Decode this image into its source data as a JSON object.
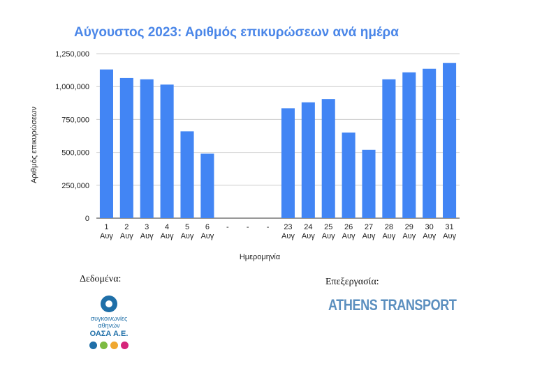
{
  "chart_data": {
    "type": "bar",
    "title": "Αύγουστος 2023: Αριθμός επικυρώσεων ανά ημέρα",
    "xlabel": "Ημερομηνία",
    "ylabel": "Αριθμός επικυρώσεων",
    "ylim": [
      0,
      1250000
    ],
    "yticks": [
      "0",
      "250,000",
      "500,000",
      "750,000",
      "1,000,000",
      "1,250,000"
    ],
    "grid": true,
    "bar_color": "#4285f4",
    "categories": [
      {
        "day": "1",
        "month": "Αυγ"
      },
      {
        "day": "2",
        "month": "Αυγ"
      },
      {
        "day": "3",
        "month": "Αυγ"
      },
      {
        "day": "4",
        "month": "Αυγ"
      },
      {
        "day": "5",
        "month": "Αυγ"
      },
      {
        "day": "6",
        "month": "Αυγ"
      },
      {
        "day": "-",
        "month": ""
      },
      {
        "day": "-",
        "month": ""
      },
      {
        "day": "-",
        "month": ""
      },
      {
        "day": "23",
        "month": "Αυγ"
      },
      {
        "day": "24",
        "month": "Αυγ"
      },
      {
        "day": "25",
        "month": "Αυγ"
      },
      {
        "day": "26",
        "month": "Αυγ"
      },
      {
        "day": "27",
        "month": "Αυγ"
      },
      {
        "day": "28",
        "month": "Αυγ"
      },
      {
        "day": "29",
        "month": "Αυγ"
      },
      {
        "day": "30",
        "month": "Αυγ"
      },
      {
        "day": "31",
        "month": "Αυγ"
      }
    ],
    "values": [
      1130000,
      1065000,
      1055000,
      1015000,
      660000,
      490000,
      null,
      null,
      null,
      835000,
      880000,
      905000,
      650000,
      520000,
      1055000,
      1108000,
      1135000,
      1180000
    ]
  },
  "credits": {
    "data_label": "Δεδομένα:",
    "processing_label": "Επεξεργασία:",
    "oasa_line1": "συγκοινωνίες",
    "oasa_line2": "αθηνών",
    "oasa_line3": "ΟΑΣΑ Α.Ε.",
    "oasa_colors": [
      "#1f6fa8",
      "#7dbb42",
      "#f0a830",
      "#d6257a"
    ],
    "athens_transport": "ATHENS TRANSPORT"
  }
}
